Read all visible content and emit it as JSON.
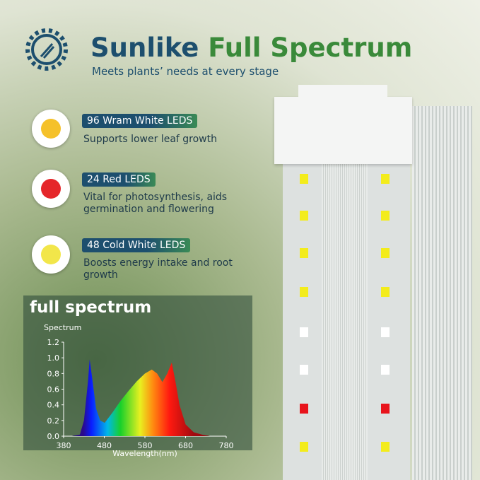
{
  "header": {
    "title": [
      "Sunlike",
      "Full Spectrum"
    ],
    "subtitle": "Meets plants’ needs at every stage"
  },
  "features": [
    {
      "label": "96 Wram White LEDS",
      "description": "Supports lower leaf growth"
    },
    {
      "label": "24 Red LEDS",
      "description": "Vital for photosynthesis, aids germination and flowering"
    },
    {
      "label": "48 Cold White LEDS",
      "description": "Boosts energy intake and root growth"
    }
  ],
  "chart_data": {
    "type": "area",
    "title": "full spectrum",
    "ylabel": "Spectrum",
    "xlabel": "Wavelength(nm)",
    "x": [
      380,
      400,
      420,
      430,
      440,
      444,
      450,
      460,
      470,
      481,
      500,
      520,
      540,
      560,
      580,
      597,
      610,
      623,
      635,
      646,
      655,
      665,
      680,
      700,
      720,
      740,
      780
    ],
    "values": [
      0,
      0,
      0.02,
      0.2,
      0.7,
      0.98,
      0.75,
      0.35,
      0.2,
      0.17,
      0.3,
      0.45,
      0.58,
      0.7,
      0.8,
      0.85,
      0.8,
      0.69,
      0.8,
      0.94,
      0.7,
      0.4,
      0.15,
      0.05,
      0.02,
      0,
      0
    ],
    "xlim": [
      380,
      780
    ],
    "xticks": [
      380,
      480,
      580,
      680,
      780
    ],
    "ylim": [
      0,
      1.2
    ],
    "yticks": [
      {
        "value": 0,
        "label": "0.0"
      },
      0.2,
      0.4,
      0.6,
      0.8,
      {
        "value": 1,
        "label": "1.0"
      },
      1.2
    ]
  }
}
